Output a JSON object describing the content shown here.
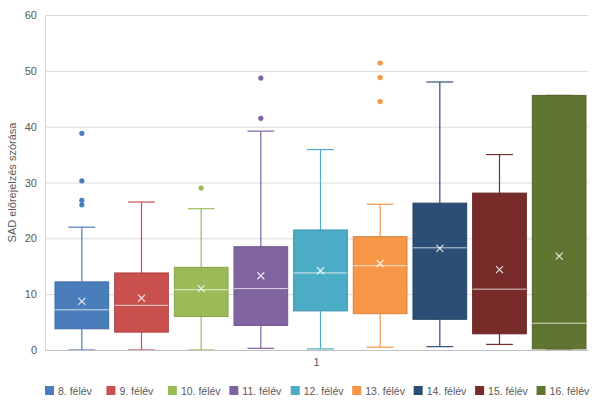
{
  "chart_data": {
    "type": "box",
    "y_label": "SAD előrejelzés szórása",
    "categories": [
      "1"
    ],
    "ylim": [
      0,
      60
    ],
    "yticks": [
      0,
      10,
      20,
      30,
      40,
      50,
      60
    ],
    "grid": true,
    "legend": "bottom",
    "series": [
      {
        "name": "8. félév",
        "color": "#4a7ebb",
        "min": 0,
        "q1": 3.8,
        "median": 7.2,
        "q3": 12.2,
        "max": 22,
        "mean": 8.7,
        "outliers": [
          38.8,
          30.3,
          26.8,
          26.0
        ]
      },
      {
        "name": "9. félév",
        "color": "#c9504d",
        "min": 0,
        "q1": 3.2,
        "median": 8,
        "q3": 13.8,
        "max": 26.5,
        "mean": 9.3,
        "outliers": []
      },
      {
        "name": "10. félév",
        "color": "#9bbb59",
        "min": 0,
        "q1": 6,
        "median": 10.8,
        "q3": 14.8,
        "max": 25.3,
        "mean": 11,
        "outliers": [
          29
        ]
      },
      {
        "name": "11. félév",
        "color": "#8064a2",
        "min": 0.3,
        "q1": 4.4,
        "median": 11,
        "q3": 18.5,
        "max": 39.2,
        "mean": 13.3,
        "outliers": [
          48.7,
          41.5
        ]
      },
      {
        "name": "12. félév",
        "color": "#4bacc6",
        "min": 0.2,
        "q1": 7,
        "median": 13.8,
        "q3": 21.5,
        "max": 35.9,
        "mean": 14.2,
        "outliers": []
      },
      {
        "name": "13. félév",
        "color": "#f79646",
        "min": 0.5,
        "q1": 6.5,
        "median": 15.1,
        "q3": 20.3,
        "max": 26.1,
        "mean": 15.5,
        "outliers": [
          51.4,
          48.8,
          44.5
        ]
      },
      {
        "name": "14. félév",
        "color": "#2c4d75",
        "min": 0.6,
        "q1": 5.5,
        "median": 18.3,
        "q3": 26.3,
        "max": 48,
        "mean": 18.2,
        "outliers": []
      },
      {
        "name": "15. félév",
        "color": "#772c2a",
        "min": 1,
        "q1": 2.9,
        "median": 10.9,
        "q3": 28.1,
        "max": 35,
        "mean": 14.4,
        "outliers": []
      },
      {
        "name": "16. félév",
        "color": "#5f7530",
        "min": 0.2,
        "q1": 0.2,
        "median": 4.8,
        "q3": 45.6,
        "max": 45.6,
        "mean": 16.8,
        "outliers": []
      }
    ]
  }
}
